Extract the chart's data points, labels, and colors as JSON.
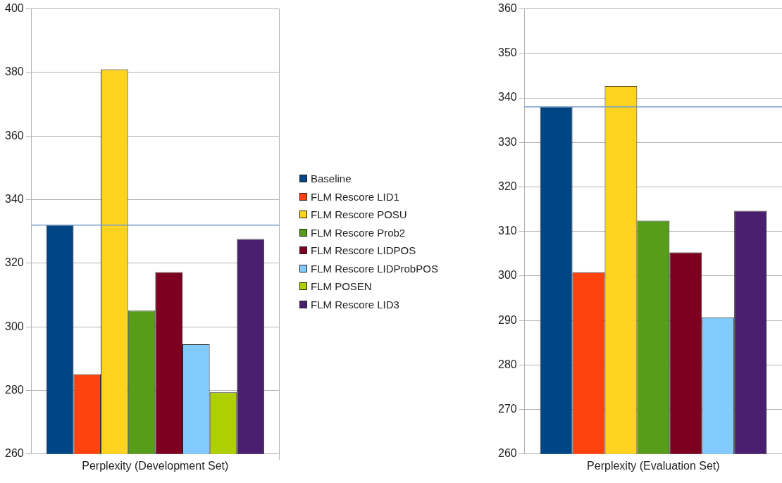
{
  "chart_data": [
    {
      "type": "bar",
      "categories": [
        "Perplexity (Development Set)"
      ],
      "ylim": [
        260,
        400
      ],
      "yticks": [
        260,
        280,
        300,
        320,
        340,
        360,
        380,
        400
      ],
      "grid": "y",
      "legend": "right",
      "series": [
        {
          "name": "Baseline",
          "color": "#004586",
          "values": [
            332.0
          ]
        },
        {
          "name": "FLM Rescore LID1",
          "color": "#ff420e",
          "values": [
            285.1
          ]
        },
        {
          "name": "FLM Rescore POSU",
          "color": "#ffd320",
          "values": [
            381.0
          ]
        },
        {
          "name": "FLM Rescore Prob2",
          "color": "#579d1c",
          "values": [
            305.1
          ]
        },
        {
          "name": "FLM Rescore LIDPOS",
          "color": "#7e0021",
          "values": [
            317.2
          ]
        },
        {
          "name": "FLM Rescore LIDProbPOS",
          "color": "#83caff",
          "values": [
            294.5
          ]
        },
        {
          "name": "FLM POSEN",
          "color": "#aecf00",
          "values": [
            279.4
          ]
        },
        {
          "name": "FLM Rescore LID3",
          "color": "#4b1f6f",
          "values": [
            327.6
          ]
        }
      ],
      "ref_lines": [
        {
          "axis": "y",
          "value": 332,
          "color": "#729fcf"
        }
      ]
    },
    {
      "type": "bar",
      "categories": [
        "Perplexity (Evaluation Set)"
      ],
      "ylim": [
        260,
        360
      ],
      "yticks": [
        260,
        270,
        280,
        290,
        300,
        310,
        320,
        330,
        340,
        350,
        360
      ],
      "grid": "y",
      "legend": false,
      "series": [
        {
          "color": "#004586",
          "values": [
            338.0
          ]
        },
        {
          "color": "#ff420e",
          "values": [
            300.8
          ]
        },
        {
          "color": "#ffd320",
          "values": [
            342.7
          ]
        },
        {
          "color": "#579d1c",
          "values": [
            312.4
          ]
        },
        {
          "color": "#7e0021",
          "values": [
            305.3
          ]
        },
        {
          "color": "#83caff",
          "values": [
            290.7
          ]
        },
        {
          "color": "#4b1f6f",
          "values": [
            314.6
          ]
        }
      ],
      "ref_lines": [
        {
          "axis": "y",
          "value": 338,
          "color": "#729fcf"
        }
      ]
    }
  ]
}
